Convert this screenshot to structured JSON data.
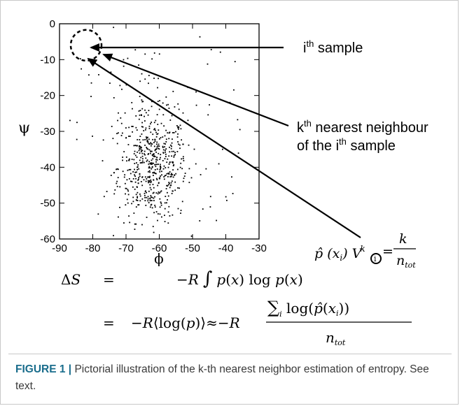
{
  "chart_data": {
    "type": "scatter",
    "xlabel": "ϕ",
    "ylabel": "ψ",
    "xlim": [
      -90,
      -30
    ],
    "ylim": [
      -60,
      0
    ],
    "x_ticks": [
      "-90",
      "-80",
      "-70",
      "-60",
      "-50",
      "-40",
      "-30"
    ],
    "y_ticks": [
      "0",
      "-10",
      "-20",
      "-30",
      "-40",
      "-50",
      "-60"
    ],
    "grid": false,
    "points_description_center": [
      -62,
      -40
    ],
    "highlight_circle_center": [
      -82,
      -6
    ]
  },
  "annotations": {
    "ith_sample": {
      "prefix": "i",
      "sup": "th",
      "rest": " sample"
    },
    "kth_line1": {
      "prefix": "k",
      "sup": "th",
      "rest": " nearest neighbour"
    },
    "kth_line2": {
      "prefix": "of the i",
      "sup": "th",
      "rest": " sample"
    }
  },
  "equations": {
    "estimator": "p̂(xᵢ)Vᵢᵏ = k / n_tot",
    "line1": "ΔS = −R ∫ p(x) log p(x)",
    "line2": "= −R⟨log(p)⟩ ≈ −R ∑ᵢ log(p̂(xᵢ)) / n_tot"
  },
  "caption": {
    "label": "FIGURE 1 |",
    "text": " Pictorial illustration of the k-th nearest neighbor estimation of entropy. See text."
  },
  "colors": {
    "label": "#1a6d8c",
    "ink": "#000000",
    "border": "#c8c8c8"
  }
}
